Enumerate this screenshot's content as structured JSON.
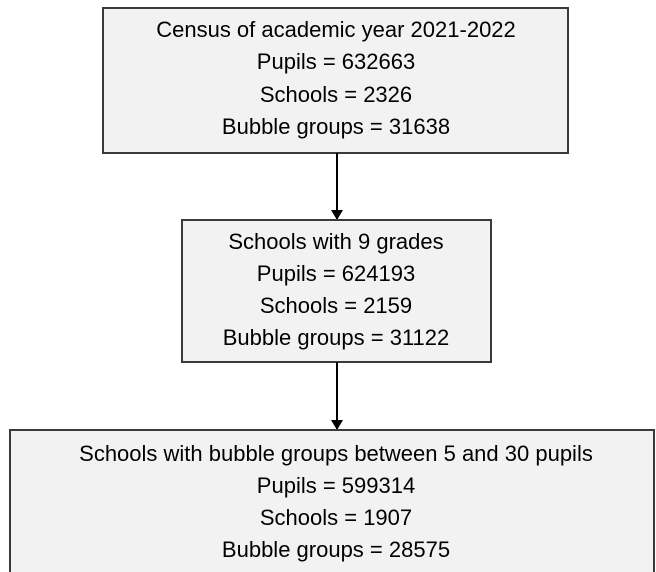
{
  "nodes": [
    {
      "lines": [
        "Census of academic year 2021-2022",
        "Pupils = 632663",
        "Schools = 2326",
        "Bubble groups = 31638"
      ]
    },
    {
      "lines": [
        "Schools with 9 grades",
        "Pupils = 624193",
        "Schools = 2159",
        "Bubble groups = 31122"
      ]
    },
    {
      "lines": [
        "Schools with bubble groups between 5 and 30 pupils",
        "Pupils = 599314",
        "Schools = 1907",
        "Bubble groups = 28575"
      ]
    }
  ]
}
